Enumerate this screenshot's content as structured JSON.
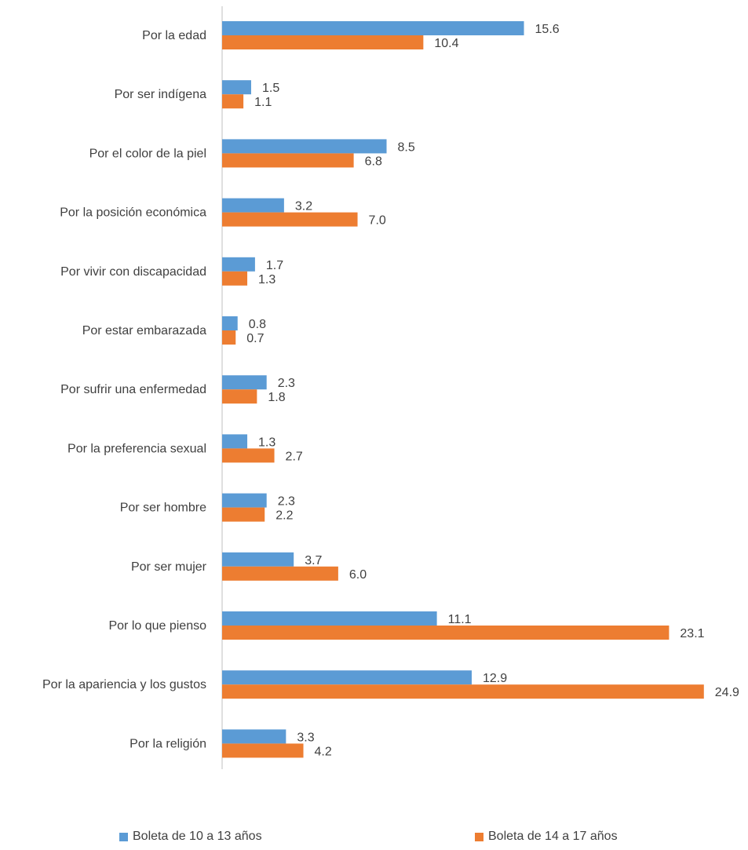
{
  "chart_data": {
    "type": "bar",
    "orientation": "horizontal",
    "categories": [
      "Por la edad",
      "Por ser indígena",
      "Por el color de la piel",
      "Por la posición económica",
      "Por vivir con discapacidad",
      "Por estar embarazada",
      "Por sufrir una enfermedad",
      "Por la preferencia sexual",
      "Por ser hombre",
      "Por ser mujer",
      "Por lo que pienso",
      "Por la apariencia y los gustos",
      "Por la religión"
    ],
    "series": [
      {
        "name": "Boleta de 10 a 13 años",
        "color": "#5B9BD5",
        "values": [
          15.6,
          1.5,
          8.5,
          3.2,
          1.7,
          0.8,
          2.3,
          1.3,
          2.3,
          3.7,
          11.1,
          12.9,
          3.3
        ],
        "labels": [
          "15.6",
          "1.5",
          "8.5",
          "3.2",
          "1.7",
          "0.8",
          "2.3",
          "1.3",
          "2.3",
          "3.7",
          "11.1",
          "12.9",
          "3.3"
        ]
      },
      {
        "name": "Boleta de 14 a 17 años",
        "color": "#ED7D31",
        "values": [
          10.4,
          1.1,
          6.8,
          7.0,
          1.3,
          0.7,
          1.8,
          2.7,
          2.2,
          6.0,
          23.1,
          24.9,
          4.2
        ],
        "labels": [
          "10.4",
          "1.1",
          "6.8",
          "7.0",
          "1.3",
          "0.7",
          "1.8",
          "2.7",
          "2.2",
          "6.0",
          "23.1",
          "24.9",
          "4.2"
        ]
      }
    ],
    "title": "",
    "xlabel": "",
    "ylabel": "",
    "xlim": [
      0,
      25
    ],
    "grid": false,
    "legend_position": "bottom"
  }
}
